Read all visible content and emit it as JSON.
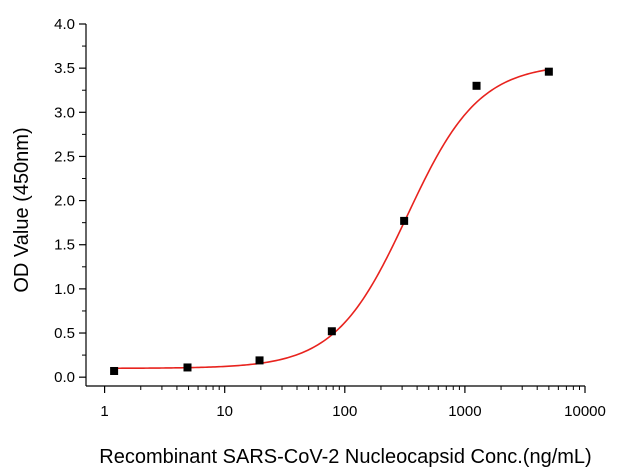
{
  "chart_data": {
    "type": "scatter",
    "title": "",
    "xlabel": "Recombinant SARS-CoV-2 Nucleocapsid Conc.(ng/mL)",
    "ylabel": "OD Value (450nm)",
    "x_scale": "log",
    "xlim": [
      0.7,
      10000
    ],
    "ylim": [
      -0.1,
      4.0
    ],
    "x_ticks": [
      1,
      10,
      100,
      1000,
      10000
    ],
    "x_tick_labels": [
      "1",
      "10",
      "100",
      "1000",
      "10000"
    ],
    "y_ticks": [
      0.0,
      0.5,
      1.0,
      1.5,
      2.0,
      2.5,
      3.0,
      3.5,
      4.0
    ],
    "y_tick_labels": [
      "0.0",
      "0.5",
      "1.0",
      "1.5",
      "2.0",
      "2.5",
      "3.0",
      "3.5",
      "4.0"
    ],
    "grid": false,
    "legend": "none",
    "series": [
      {
        "marker": "square",
        "color": "#000000",
        "x": [
          1.2,
          4.9,
          19.5,
          78,
          312,
          1250,
          5000
        ],
        "y": [
          0.07,
          0.11,
          0.19,
          0.52,
          1.77,
          3.3,
          3.46
        ]
      }
    ],
    "fit_curve": {
      "model": "4PL",
      "color": "#e8231e",
      "bottom": 0.1,
      "top": 3.55,
      "ec50": 330,
      "hill": 1.45,
      "x_range": [
        1.2,
        5000
      ]
    }
  }
}
